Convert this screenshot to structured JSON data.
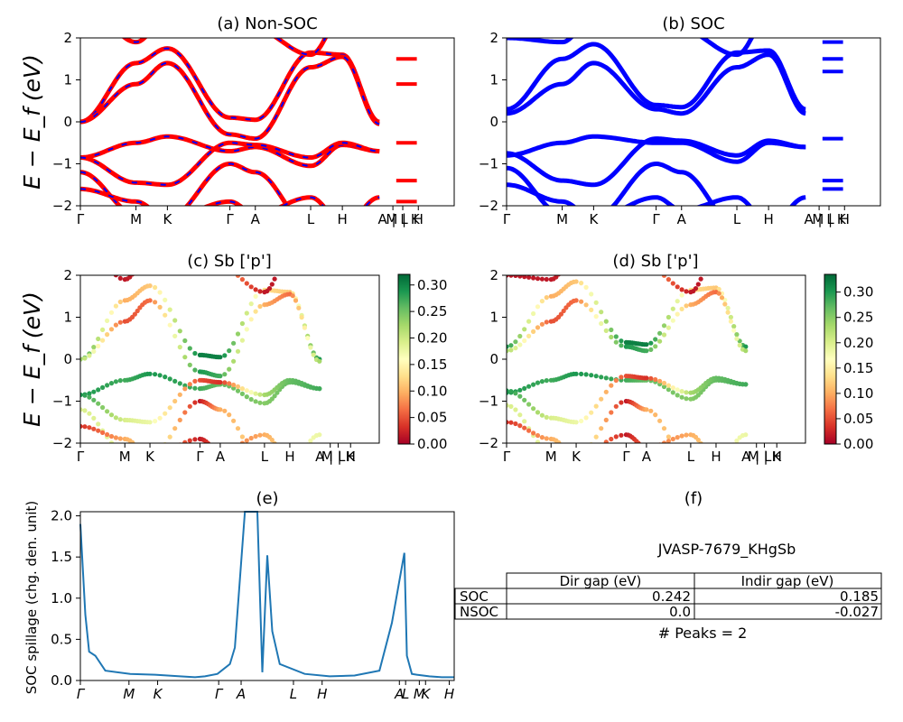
{
  "panels": {
    "a": {
      "title": "(a) Non-SOC",
      "ylabel": "E − E_f (eV)"
    },
    "b": {
      "title": "(b) SOC"
    },
    "c": {
      "title": "(c)  Sb ['p']",
      "ylabel": "E − E_f (eV)"
    },
    "d": {
      "title": "(d) Sb ['p']"
    },
    "e": {
      "title": "(e)",
      "ylabel": "SOC spillage (chg. den. unit)"
    },
    "f": {
      "title": "(f)"
    }
  },
  "band_axes": {
    "ylim": [
      -2,
      2
    ],
    "yticks": [
      "2",
      "1",
      "0",
      "−1",
      "−2"
    ],
    "kpath_labels": [
      "Γ",
      "M",
      "K",
      "Γ",
      "A",
      "L",
      "H",
      "A | L",
      "M | K",
      "H"
    ]
  },
  "colorbars": {
    "c": {
      "ticks": [
        "0.30",
        "0.25",
        "0.20",
        "0.15",
        "0.10",
        "0.05",
        "0.00"
      ],
      "max": 0.32
    },
    "d": {
      "ticks": [
        "0.30",
        "0.25",
        "0.20",
        "0.15",
        "0.10",
        "0.05",
        "0.00"
      ],
      "max": 0.335
    },
    "colormap": "RdYlGn"
  },
  "chart_data": [
    {
      "type": "line",
      "panel": "a",
      "title": "(a) Non-SOC",
      "ylabel": "E − E_f (eV)",
      "ylim": [
        -2,
        2
      ],
      "series_colors": [
        "#ff0000",
        "#0000ff"
      ],
      "bands_sampled": [
        {
          "k": [
            "Γ",
            "M",
            "K",
            "Γ",
            "A",
            "L",
            "H",
            "A"
          ],
          "E": [
            0.0,
            1.4,
            1.7,
            0.1,
            0.05,
            1.6,
            1.6,
            0.0
          ]
        },
        {
          "k": [
            "Γ",
            "M",
            "K",
            "Γ",
            "A",
            "L",
            "H",
            "A"
          ],
          "E": [
            -0.85,
            -0.5,
            -0.4,
            -0.6,
            -0.6,
            -1.0,
            -0.6,
            -0.7
          ]
        }
      ]
    },
    {
      "type": "line",
      "panel": "b",
      "title": "(b) SOC",
      "ylim": [
        -2,
        2
      ],
      "series_colors": [
        "#0000ff"
      ],
      "bands_sampled": [
        {
          "k": [
            "Γ",
            "M",
            "K",
            "Γ",
            "A",
            "L",
            "H",
            "A"
          ],
          "E": [
            0.3,
            1.5,
            1.8,
            0.4,
            0.35,
            1.65,
            1.7,
            0.3
          ]
        },
        {
          "k": [
            "Γ",
            "M",
            "K",
            "Γ",
            "A",
            "L",
            "H",
            "A"
          ],
          "E": [
            -0.8,
            -0.5,
            -0.35,
            -0.5,
            -0.5,
            -0.9,
            -0.5,
            -0.6
          ]
        }
      ]
    },
    {
      "type": "scatter",
      "panel": "c",
      "title": "(c)  Sb ['p']",
      "ylim": [
        -2,
        2
      ],
      "colorbar_range": [
        0,
        0.32
      ],
      "colormap": "RdYlGn"
    },
    {
      "type": "scatter",
      "panel": "d",
      "title": "(d) Sb ['p']",
      "ylim": [
        -2,
        2
      ],
      "colorbar_range": [
        0,
        0.335
      ],
      "colormap": "RdYlGn"
    },
    {
      "type": "line",
      "panel": "e",
      "title": "(e)",
      "ylabel": "SOC spillage (chg. den. unit)",
      "ylim": [
        0,
        2.05
      ],
      "yticks": [
        "0.0",
        "0.5",
        "1.0",
        "1.5",
        "2.0"
      ],
      "xticks": [
        "Γ",
        "M",
        "K",
        "Γ",
        "A",
        "L",
        "H",
        "A",
        "L",
        "M",
        "K",
        "H"
      ],
      "x": [
        0,
        0.2,
        0.35,
        0.6,
        1.0,
        2.0,
        3.0,
        4.0,
        4.6,
        5.0,
        5.5,
        6.0,
        6.2,
        6.6,
        7.0,
        7.1,
        7.3,
        7.5,
        7.7,
        8.0,
        9.0,
        10.0,
        11.0,
        12.0,
        12.5,
        13.0,
        13.1,
        13.3,
        13.5,
        14.0,
        14.5,
        15.0
      ],
      "values": [
        1.9,
        0.8,
        0.35,
        0.3,
        0.12,
        0.08,
        0.07,
        0.05,
        0.04,
        0.05,
        0.08,
        0.2,
        0.4,
        2.05,
        2.05,
        2.05,
        0.1,
        1.52,
        0.6,
        0.2,
        0.08,
        0.05,
        0.06,
        0.12,
        0.7,
        1.55,
        0.3,
        0.08,
        0.07,
        0.05,
        0.04,
        0.04
      ],
      "series_color": "#1f77b4"
    },
    {
      "type": "table",
      "panel": "f",
      "title": "(f)"
    }
  ],
  "table_f": {
    "caption": "JVASP-7679_KHgSb",
    "col_headers": [
      "Dir gap (eV)",
      "Indir gap (eV)"
    ],
    "rows": [
      {
        "label": "SOC",
        "dir": "0.242",
        "indir": "0.185"
      },
      {
        "label": "NSOC",
        "dir": "0.0",
        "indir": "-0.027"
      }
    ],
    "footer": "# Peaks = 2"
  }
}
